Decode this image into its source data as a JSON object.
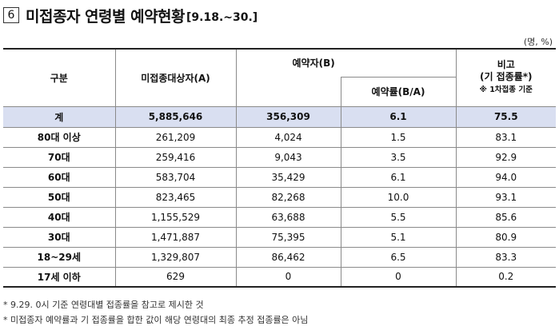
{
  "section_number": "6",
  "title": "미접종자 연령별 예약현황",
  "title_date": "[9.18.~30.]",
  "unit": "(명, %)",
  "headers": {
    "category": "구분",
    "unvaccinated": "미접종대상자(A)",
    "reserved": "예약자(B)",
    "rate": "예약률(B/A)",
    "note_line1": "비고",
    "note_line2": "(기 접종률*)",
    "note_sub": "※ 1차접종 기준"
  },
  "rows": [
    {
      "label": "계",
      "unvaccinated": "5,885,646",
      "reserved": "356,309",
      "rate": "6.1",
      "note": "75.5"
    },
    {
      "label": "80대 이상",
      "unvaccinated": "261,209",
      "reserved": "4,024",
      "rate": "1.5",
      "note": "83.1"
    },
    {
      "label": "70대",
      "unvaccinated": "259,416",
      "reserved": "9,043",
      "rate": "3.5",
      "note": "92.9"
    },
    {
      "label": "60대",
      "unvaccinated": "583,704",
      "reserved": "35,429",
      "rate": "6.1",
      "note": "94.0"
    },
    {
      "label": "50대",
      "unvaccinated": "823,465",
      "reserved": "82,268",
      "rate": "10.0",
      "note": "93.1"
    },
    {
      "label": "40대",
      "unvaccinated": "1,155,529",
      "reserved": "63,688",
      "rate": "5.5",
      "note": "85.6"
    },
    {
      "label": "30대",
      "unvaccinated": "1,471,887",
      "reserved": "75,395",
      "rate": "5.1",
      "note": "80.9"
    },
    {
      "label": "18~29세",
      "unvaccinated": "1,329,807",
      "reserved": "86,462",
      "rate": "6.5",
      "note": "83.3"
    },
    {
      "label": "17세 이하",
      "unvaccinated": "629",
      "reserved": "0",
      "rate": "0",
      "note": "0.2"
    }
  ],
  "footnotes": [
    "* 9.29. 0시 기준 연령대별 접종률을 참고로 제시한 것",
    "* 미접종자 예약률과 기 접종률을 합한 값이 해당 연령대의 최종 추정 접종률은 아님"
  ],
  "colors": {
    "total_row_bg": "#d9dff1"
  }
}
